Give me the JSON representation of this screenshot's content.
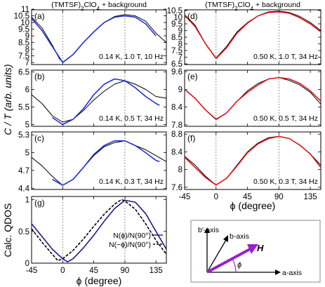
{
  "figure": {
    "header_left": [
      "(TMTSF)",
      "2",
      "ClO",
      "4",
      " + background"
    ],
    "header_right": [
      "(TMTSF)",
      "2",
      "ClO",
      "4",
      " + background"
    ],
    "ylabel_left": "C / T (arb. units)",
    "ylabel_bottom": "Calc. QDOS",
    "xlabel": "ϕ (degree)",
    "colors": {
      "left_fit": "#1f2fd6",
      "right_fit": "#e0141b",
      "data": "#000000",
      "vector": "#9a1fd0",
      "schematic_border": "#888888"
    }
  },
  "chart_data": [
    {
      "type": "line",
      "panel_label": "(a)",
      "annotation": "0.14 K, 1.0 T, 10 Hz",
      "x_range": [
        -45,
        150
      ],
      "ylim": [
        6.85,
        10.95
      ],
      "yticks": [
        "7",
        "7.5",
        "8",
        "8.5",
        "9",
        "9.5",
        "10",
        "10.5",
        "11"
      ],
      "ytick_values": [
        7,
        7.5,
        8,
        8.5,
        9,
        9.5,
        10,
        10.5,
        11
      ],
      "series": [
        {
          "role": "data",
          "color": "#000000",
          "x": [
            -45,
            -30,
            -15,
            -5,
            0,
            15,
            30,
            45,
            60,
            75,
            90,
            105,
            120,
            135,
            150
          ],
          "y": [
            10.4,
            9.6,
            8.3,
            7.3,
            7.02,
            7.6,
            8.5,
            9.3,
            10.0,
            10.45,
            10.6,
            10.5,
            10.1,
            9.2,
            8.5
          ]
        },
        {
          "role": "fit",
          "color": "#1f2fd6",
          "x": [
            -45,
            -30,
            -15,
            0,
            15,
            30,
            45,
            60,
            75,
            90,
            105,
            120,
            135
          ],
          "y": [
            10.3,
            9.4,
            8.2,
            7.0,
            7.6,
            8.5,
            9.3,
            10.0,
            10.4,
            10.5,
            10.4,
            9.9,
            9.0
          ]
        }
      ]
    },
    {
      "type": "line",
      "panel_label": "(b)",
      "annotation": "0.14 K, 0.5 T, 34 Hz",
      "x_range": [
        -45,
        150
      ],
      "ylim": [
        4.95,
        6.55
      ],
      "yticks": [
        "5",
        "5.5",
        "6",
        "6.5"
      ],
      "ytick_values": [
        5,
        5.5,
        6,
        6.5
      ],
      "series": [
        {
          "role": "data",
          "color": "#000000",
          "x": [
            -45,
            -30,
            -15,
            0,
            15,
            30,
            45,
            60,
            75,
            90,
            105,
            120,
            135,
            150
          ],
          "y": [
            5.85,
            5.6,
            5.25,
            5.07,
            5.15,
            5.4,
            5.7,
            5.95,
            6.15,
            6.25,
            6.15,
            6.0,
            5.8,
            5.75
          ]
        },
        {
          "role": "fit",
          "color": "#1f2fd6",
          "x": [
            -15,
            0,
            15,
            30,
            45,
            60,
            75,
            90,
            105,
            120,
            135,
            140
          ],
          "y": [
            5.2,
            5.0,
            5.15,
            5.45,
            5.85,
            6.15,
            6.3,
            6.25,
            6.05,
            5.8,
            5.6,
            5.55
          ]
        }
      ]
    },
    {
      "type": "line",
      "panel_label": "(c)",
      "annotation": "0.14 K, 0.3 T, 34 Hz",
      "x_range": [
        -45,
        150
      ],
      "ylim": [
        4.38,
        5.35
      ],
      "yticks": [
        "4.4",
        "4.7",
        "5",
        "5.3"
      ],
      "ytick_values": [
        4.4,
        4.7,
        5,
        5.3
      ],
      "series": [
        {
          "role": "data",
          "color": "#000000",
          "x": [
            -45,
            -30,
            -15,
            0,
            15,
            30,
            45,
            60,
            75,
            90,
            105,
            120,
            135,
            150
          ],
          "y": [
            4.92,
            4.78,
            4.6,
            4.45,
            4.55,
            4.75,
            4.95,
            5.1,
            5.17,
            5.2,
            5.12,
            5.05,
            4.95,
            4.85
          ]
        },
        {
          "role": "fit",
          "color": "#1f2fd6",
          "x": [
            -15,
            0,
            15,
            30,
            45,
            60,
            75,
            90,
            105,
            120,
            135,
            140
          ],
          "y": [
            4.55,
            4.45,
            4.55,
            4.75,
            4.97,
            5.12,
            5.2,
            5.2,
            5.12,
            5.0,
            4.87,
            4.85
          ]
        }
      ]
    },
    {
      "type": "line",
      "panel_label": "(g)",
      "legend": [
        {
          "label": "N(ϕ)/N(90°)",
          "color": "#1a1a8a",
          "dash": "solid"
        },
        {
          "label": "N(−ϕ)/N(90°)",
          "color": "#000000",
          "dash": "dashed"
        }
      ],
      "x_range": [
        -45,
        150
      ],
      "ylim": [
        0,
        1.05
      ],
      "yticks": [
        "0",
        "0.5",
        "1"
      ],
      "ytick_values": [
        0,
        0.5,
        1
      ],
      "xticks": [
        "-45",
        "0",
        "45",
        "90",
        "135"
      ],
      "xtick_values": [
        -45,
        0,
        45,
        90,
        135
      ],
      "xlabel": "ϕ (degree)",
      "series": [
        {
          "name": "N(ϕ)/N(90°)",
          "color": "#1a1a8a",
          "dash": "solid",
          "x": [
            -45,
            -30,
            -15,
            0,
            7,
            15,
            30,
            45,
            60,
            75,
            90,
            105,
            120,
            135,
            150
          ],
          "y": [
            0.62,
            0.42,
            0.22,
            0.07,
            0.02,
            0.07,
            0.24,
            0.44,
            0.66,
            0.86,
            0.99,
            0.96,
            0.78,
            0.5,
            0.22
          ]
        },
        {
          "name": "N(−ϕ)/N(90°)",
          "color": "#000000",
          "dash": "dashed",
          "x": [
            -45,
            -30,
            -15,
            -7,
            0,
            15,
            30,
            45,
            60,
            75,
            85,
            90,
            105,
            120,
            135,
            150
          ],
          "y": [
            0.54,
            0.33,
            0.14,
            0.04,
            0.07,
            0.2,
            0.38,
            0.58,
            0.77,
            0.93,
            1.0,
            0.98,
            0.85,
            0.62,
            0.36,
            0.14
          ]
        }
      ]
    },
    {
      "type": "line",
      "panel_label": "(d)",
      "annotation": "0.50 K, 1.0 T, 34 Hz",
      "x_range": [
        -45,
        150
      ],
      "ylim": [
        6.45,
        10.55
      ],
      "yticks": [
        "6.5",
        "7",
        "7.5",
        "8",
        "8.5",
        "9",
        "9.5",
        "10",
        "10.5"
      ],
      "ytick_values": [
        6.5,
        7,
        7.5,
        8,
        8.5,
        9,
        9.5,
        10,
        10.5
      ],
      "series": [
        {
          "role": "data",
          "color": "#000000",
          "x": [
            -45,
            -30,
            -15,
            0,
            15,
            30,
            45,
            60,
            75,
            90,
            105,
            120,
            135,
            150
          ],
          "y": [
            10.2,
            9.4,
            8.0,
            6.95,
            7.8,
            8.9,
            9.6,
            10.1,
            10.4,
            10.45,
            10.35,
            10.05,
            9.6,
            9.0
          ]
        },
        {
          "role": "fit",
          "color": "#e0141b",
          "x": [
            -45,
            -30,
            -15,
            0,
            15,
            30,
            45,
            60,
            75,
            90,
            105,
            120,
            135,
            150
          ],
          "y": [
            10.15,
            9.3,
            8.0,
            6.9,
            7.7,
            8.8,
            9.55,
            10.1,
            10.35,
            10.4,
            10.3,
            9.95,
            9.5,
            8.9
          ]
        }
      ]
    },
    {
      "type": "line",
      "panel_label": "(e)",
      "annotation": "0.50 K, 0.5 T, 34 Hz",
      "x_range": [
        -45,
        150
      ],
      "ylim": [
        7.75,
        9.65
      ],
      "yticks": [
        "7.8",
        "8.4",
        "9",
        "9.6"
      ],
      "ytick_values": [
        7.8,
        8.4,
        9,
        9.6
      ],
      "series": [
        {
          "role": "data",
          "color": "#000000",
          "x": [
            -45,
            -30,
            -15,
            0,
            15,
            30,
            45,
            60,
            75,
            90,
            105,
            120,
            135,
            150
          ],
          "y": [
            9.0,
            8.7,
            8.3,
            8.0,
            8.2,
            8.6,
            8.95,
            9.2,
            9.35,
            9.4,
            9.3,
            9.15,
            8.9,
            8.5
          ]
        },
        {
          "role": "fit",
          "color": "#e0141b",
          "x": [
            -45,
            -30,
            -15,
            0,
            15,
            30,
            45,
            60,
            75,
            90,
            105,
            120,
            135,
            150
          ],
          "y": [
            9.0,
            8.7,
            8.3,
            7.98,
            8.2,
            8.6,
            8.9,
            9.15,
            9.35,
            9.4,
            9.35,
            9.2,
            8.95,
            8.6
          ]
        }
      ]
    },
    {
      "type": "line",
      "panel_label": "(f)",
      "annotation": "0.50 K, 0.3 T, 34 Hz",
      "x_range": [
        -45,
        150
      ],
      "ylim": [
        7.55,
        8.85
      ],
      "yticks": [
        "7.6",
        "8",
        "8.4",
        "8.8"
      ],
      "ytick_values": [
        7.6,
        8,
        8.4,
        8.8
      ],
      "series": [
        {
          "role": "data",
          "color": "#000000",
          "x": [
            -45,
            -30,
            -15,
            0,
            15,
            30,
            45,
            60,
            75,
            90,
            105,
            120,
            135,
            150
          ],
          "y": [
            8.3,
            8.1,
            7.85,
            7.65,
            7.8,
            8.1,
            8.4,
            8.6,
            8.72,
            8.75,
            8.7,
            8.55,
            8.35,
            8.1
          ]
        },
        {
          "role": "fit",
          "color": "#e0141b",
          "x": [
            -45,
            -30,
            -15,
            0,
            15,
            30,
            45,
            60,
            75,
            90,
            105,
            120,
            135,
            150
          ],
          "y": [
            8.28,
            8.05,
            7.82,
            7.65,
            7.8,
            8.08,
            8.38,
            8.58,
            8.7,
            8.75,
            8.7,
            8.55,
            8.35,
            8.05
          ]
        }
      ]
    }
  ],
  "right_xticks": {
    "labels": [
      "-45",
      "0",
      "45",
      "90",
      "135"
    ],
    "values": [
      -45,
      0,
      45,
      90,
      135
    ]
  },
  "schematic": {
    "labels": {
      "b_prime": "b′-axis",
      "b": "b-axis",
      "H": "H",
      "phi": "ϕ",
      "a": "a-axis"
    }
  }
}
